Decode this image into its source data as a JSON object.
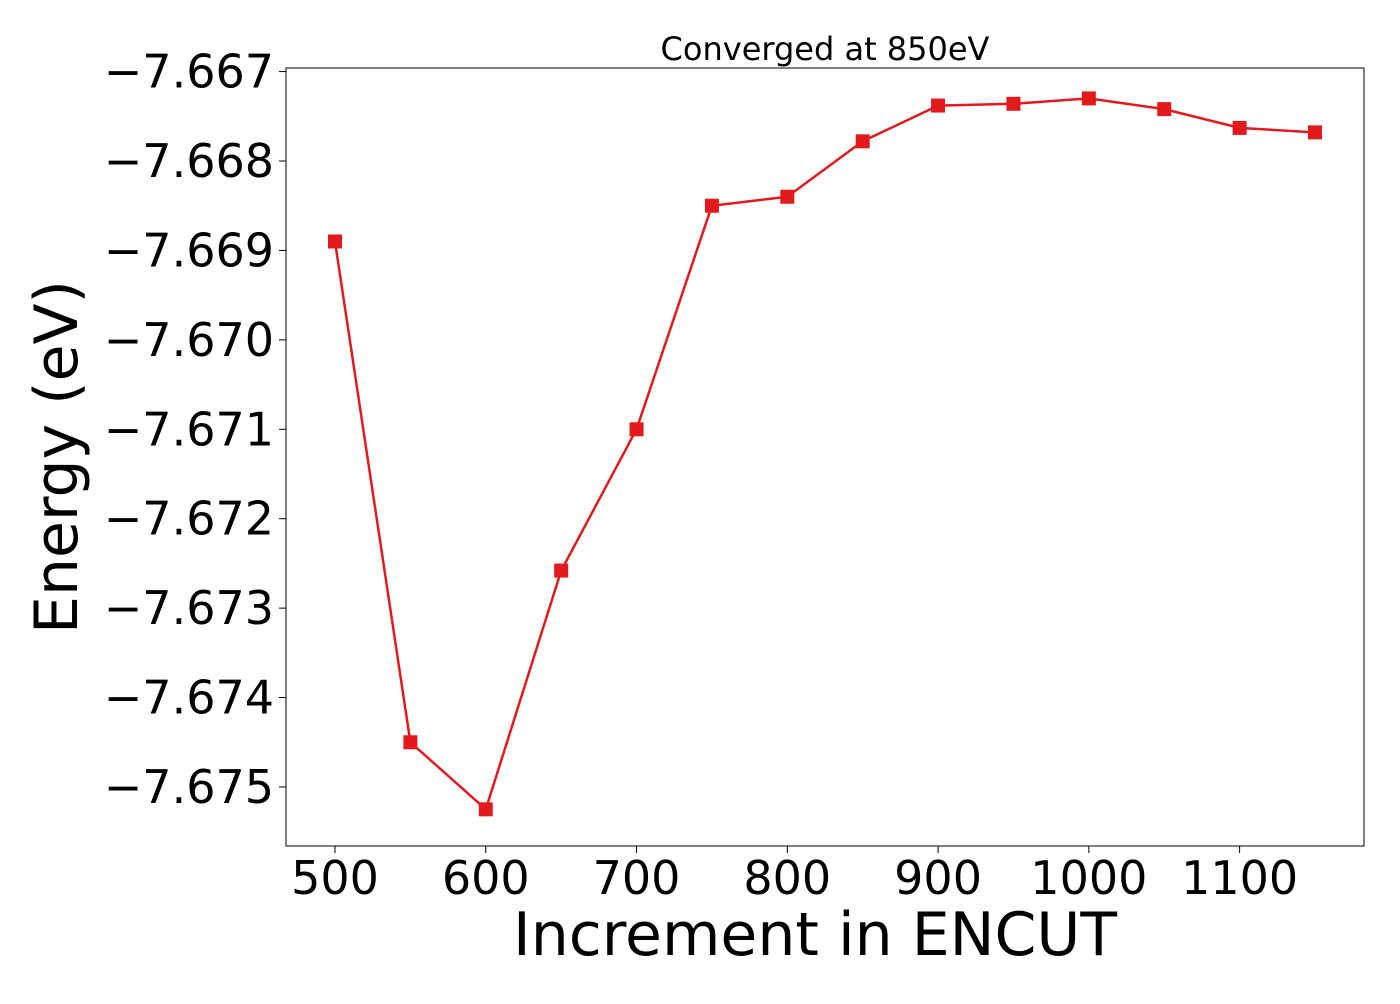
{
  "chart_data": {
    "type": "line",
    "title": "Converged at 850eV",
    "xlabel": "Increment in ENCUT",
    "ylabel": "Energy (eV)",
    "x": [
      500,
      550,
      600,
      650,
      700,
      750,
      800,
      850,
      900,
      950,
      1000,
      1050,
      1100,
      1150
    ],
    "series": [
      {
        "values": [
          -7.6689,
          -7.6745,
          -7.67525,
          -7.67258,
          -7.671,
          -7.6685,
          -7.6684,
          -7.66778,
          -7.66738,
          -7.66736,
          -7.6673,
          -7.66742,
          -7.66763,
          -7.66768
        ],
        "color": "#e31a1c",
        "marker": "square"
      }
    ],
    "xlim": [
      467.5,
      1182.5
    ],
    "ylim": [
      -7.67566,
      -7.66696
    ],
    "xticks": [
      500,
      600,
      700,
      800,
      900,
      1000,
      1100
    ],
    "xtick_labels": [
      "500",
      "600",
      "700",
      "800",
      "900",
      "1000",
      "1100"
    ],
    "yticks": [
      -7.667,
      -7.668,
      -7.669,
      -7.67,
      -7.671,
      -7.672,
      -7.673,
      -7.674,
      -7.675
    ],
    "ytick_labels": [
      "−7.667",
      "−7.668",
      "−7.669",
      "−7.670",
      "−7.671",
      "−7.672",
      "−7.673",
      "−7.674",
      "−7.675"
    ],
    "grid": false,
    "legend": false
  }
}
